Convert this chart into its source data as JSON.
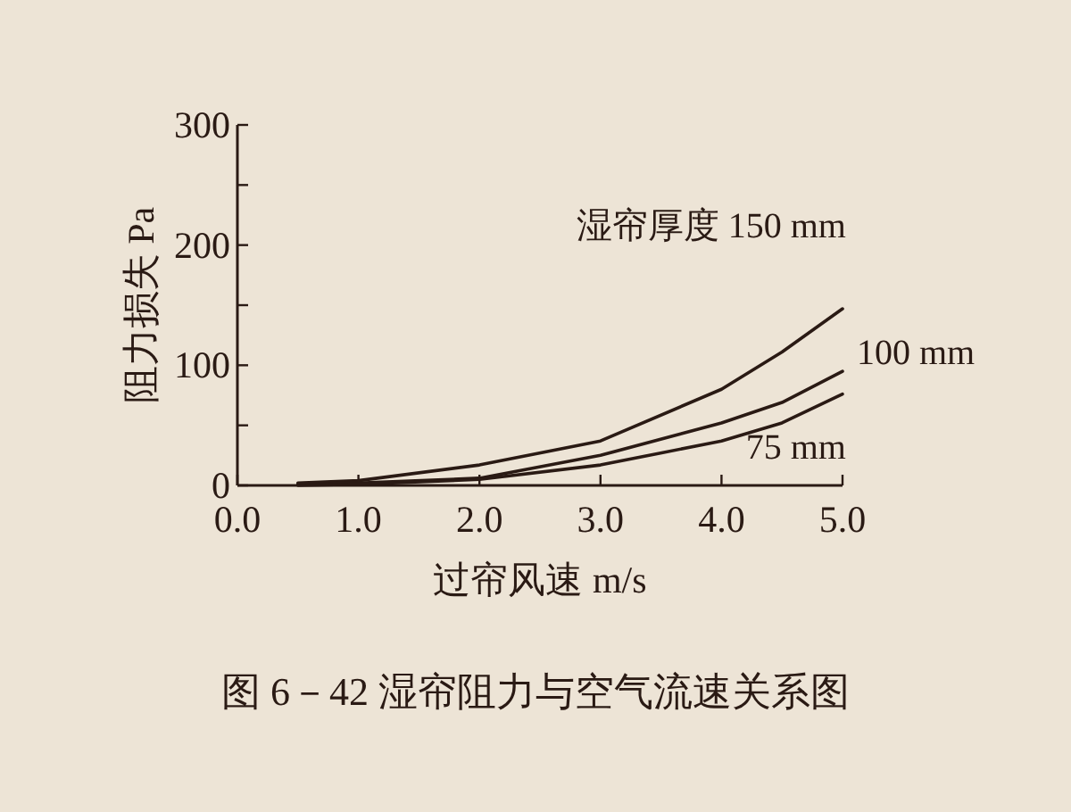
{
  "chart_data": {
    "type": "line",
    "xlabel": "过帘风速 m/s",
    "ylabel": "阻力损失 Pa",
    "x": [
      0.5,
      1.0,
      2.0,
      3.0,
      4.0,
      4.5,
      5.0
    ],
    "series": [
      {
        "name": "湿帘厚度 150 mm",
        "color": "#2a1a14",
        "values": [
          2,
          4,
          17,
          37,
          80,
          111,
          147
        ]
      },
      {
        "name": "100 mm",
        "color": "#2a1a14",
        "values": [
          1,
          2,
          6,
          25,
          52,
          69,
          95
        ]
      },
      {
        "name": "75 mm",
        "color": "#2a1a14",
        "values": [
          0,
          1,
          5,
          17,
          37,
          52,
          76
        ]
      }
    ],
    "xlim": [
      0,
      5
    ],
    "xticks": [
      {
        "value": 0,
        "label": "0.0"
      },
      {
        "value": 1,
        "label": "1.0"
      },
      {
        "value": 2,
        "label": "2.0"
      },
      {
        "value": 3,
        "label": "3.0"
      },
      {
        "value": 4,
        "label": "4.0"
      },
      {
        "value": 5,
        "label": "5.0"
      }
    ],
    "ylim": [
      0,
      300
    ],
    "yticks": [
      0,
      {
        "value": 50,
        "label": null
      },
      100,
      {
        "value": 150,
        "label": null
      },
      200,
      {
        "value": 250,
        "label": null
      },
      300
    ],
    "grid": false,
    "legend": false,
    "marker": "none",
    "line_style": "solid",
    "annotations": [
      "图 6－42 湿帘阻力与空气流速关系图"
    ]
  }
}
